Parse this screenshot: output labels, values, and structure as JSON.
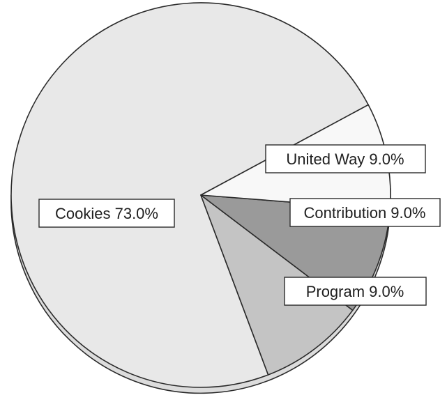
{
  "chart_data": {
    "type": "pie",
    "title": "",
    "slices": [
      {
        "label": "Cookies 73.0%",
        "category": "Cookies",
        "value": 73.0,
        "color": "#e8e8e8"
      },
      {
        "label": "Program 9.0%",
        "category": "Program",
        "value": 9.0,
        "color": "#c4c4c4"
      },
      {
        "label": "Contribution 9.0%",
        "category": "Contribution",
        "value": 9.0,
        "color": "#9a9a9a"
      },
      {
        "label": "United Way 9.0%",
        "category": "United Way",
        "value": 9.0,
        "color": "#f8f8f8"
      }
    ],
    "style": "3d",
    "legend": "none"
  }
}
